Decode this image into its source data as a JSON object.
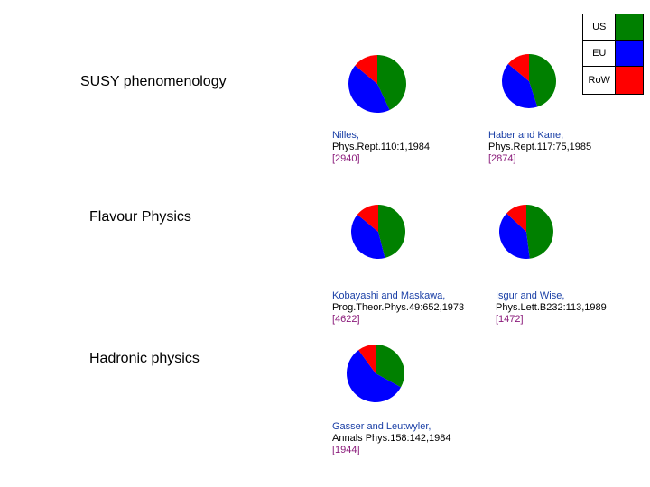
{
  "sections": [
    {
      "title": "SUSY phenomenology"
    },
    {
      "title": "Flavour Physics"
    },
    {
      "title": "Hadronic physics"
    }
  ],
  "legend": [
    {
      "label": "US",
      "color": "#008000"
    },
    {
      "label": "EU",
      "color": "#0000ff"
    },
    {
      "label": "RoW",
      "color": "#ff0000"
    }
  ],
  "colors": {
    "US": "#008000",
    "EU": "#0000ff",
    "RoW": "#ff0000"
  },
  "references": [
    {
      "author": "Nilles,",
      "journal": "Phys.Rept.110:1,1984",
      "citations": "[2940]"
    },
    {
      "author": "Haber and Kane,",
      "journal": "Phys.Rept.117:75,1985",
      "citations": "[2874]"
    },
    {
      "author": "Kobayashi and Maskawa,",
      "journal": "Prog.Theor.Phys.49:652,1973",
      "citations": "[4622]"
    },
    {
      "author": "Isgur and Wise,",
      "journal": "Phys.Lett.B232:113,1989",
      "citations": "[1472]"
    },
    {
      "author": "Gasser and Leutwyler,",
      "journal": "Annals Phys.158:142,1984",
      "citations": "[1944]"
    }
  ],
  "chart_data": [
    {
      "type": "pie",
      "categories": [
        "US",
        "EU",
        "RoW"
      ],
      "values": [
        43,
        43,
        14
      ]
    },
    {
      "type": "pie",
      "categories": [
        "US",
        "EU",
        "RoW"
      ],
      "values": [
        45,
        41,
        14
      ]
    },
    {
      "type": "pie",
      "categories": [
        "US",
        "EU",
        "RoW"
      ],
      "values": [
        46,
        40,
        14
      ]
    },
    {
      "type": "pie",
      "categories": [
        "US",
        "EU",
        "RoW"
      ],
      "values": [
        48,
        39,
        13
      ]
    },
    {
      "type": "pie",
      "categories": [
        "US",
        "EU",
        "RoW"
      ],
      "values": [
        33,
        57,
        10
      ]
    }
  ]
}
